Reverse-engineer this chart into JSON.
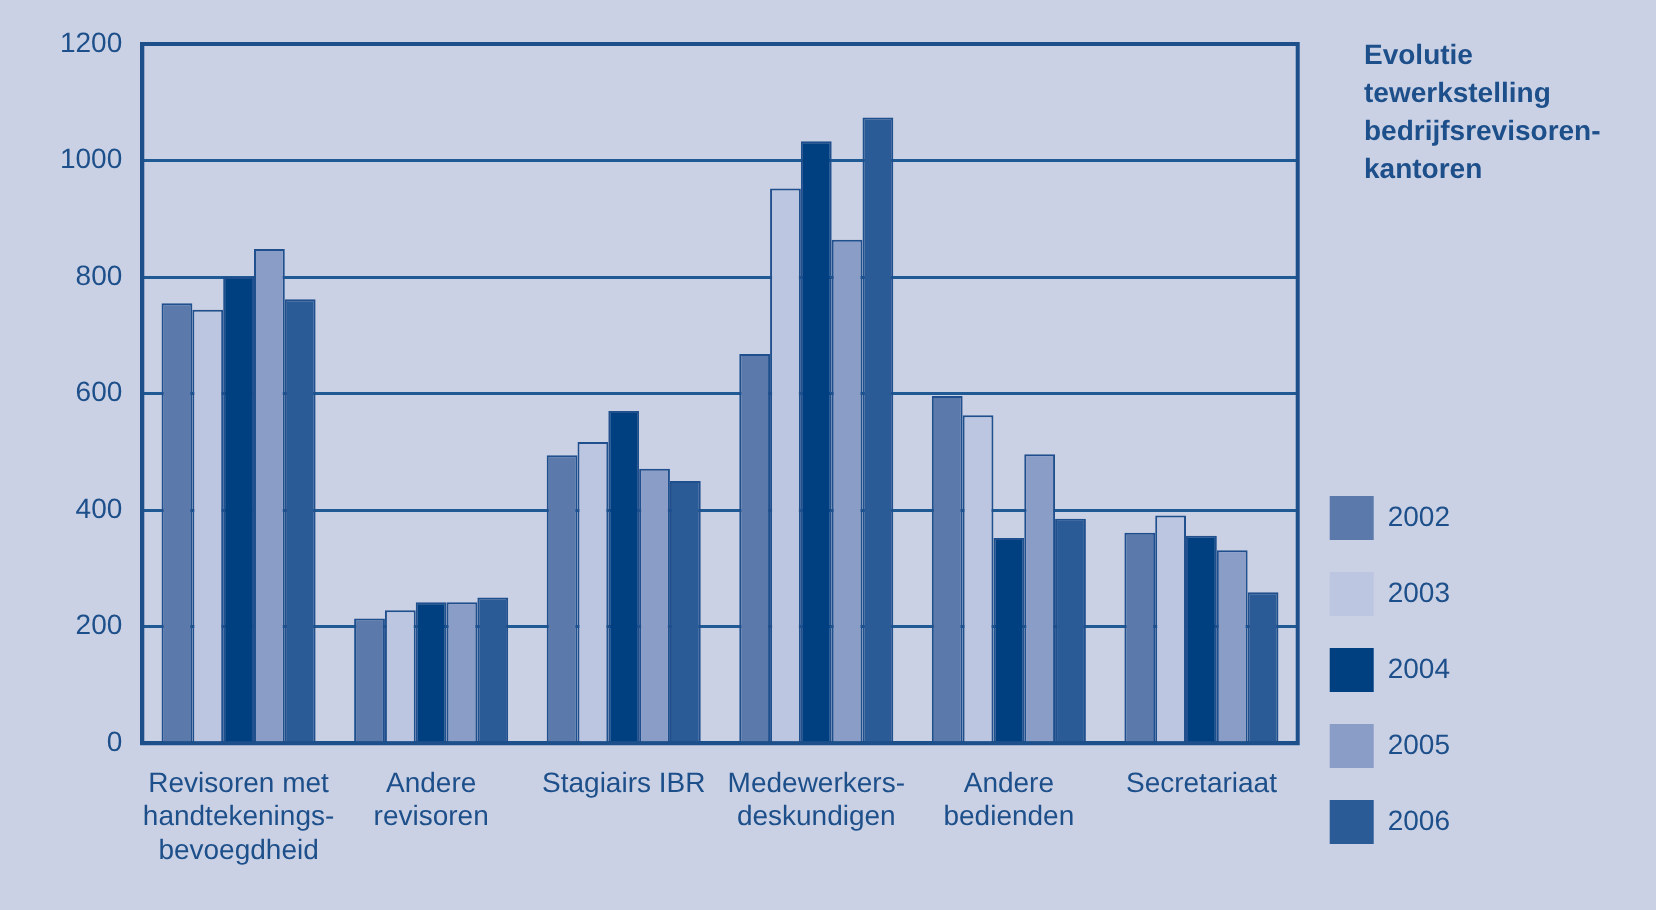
{
  "chart_data": {
    "type": "bar",
    "title": "Evolutie tewerkstelling bedrijfsrevisoren-kantoren",
    "categories": [
      "Revisoren met handtekenings-bevoegdheid",
      "Andere revisoren",
      "Stagiairs IBR",
      "Medewerkers-deskundigen",
      "Andere bedienden",
      "Secretariaat"
    ],
    "series": [
      {
        "name": "2002",
        "color": "#5b79ab",
        "values": [
          755,
          214,
          494,
          668,
          596,
          361
        ]
      },
      {
        "name": "2003",
        "color": "#bcc6e0",
        "values": [
          744,
          228,
          517,
          952,
          563,
          391
        ]
      },
      {
        "name": "2004",
        "color": "#003f80",
        "values": [
          800,
          242,
          570,
          1033,
          352,
          356
        ]
      },
      {
        "name": "2005",
        "color": "#8a9dc6",
        "values": [
          848,
          242,
          471,
          864,
          496,
          331
        ]
      },
      {
        "name": "2006",
        "color": "#2b5b96",
        "values": [
          762,
          250,
          450,
          1074,
          385,
          259
        ]
      }
    ],
    "ylim": [
      0,
      1200
    ],
    "yticks": [
      0,
      200,
      400,
      600,
      800,
      1000,
      1200
    ],
    "grid": "y",
    "legend": "right"
  }
}
